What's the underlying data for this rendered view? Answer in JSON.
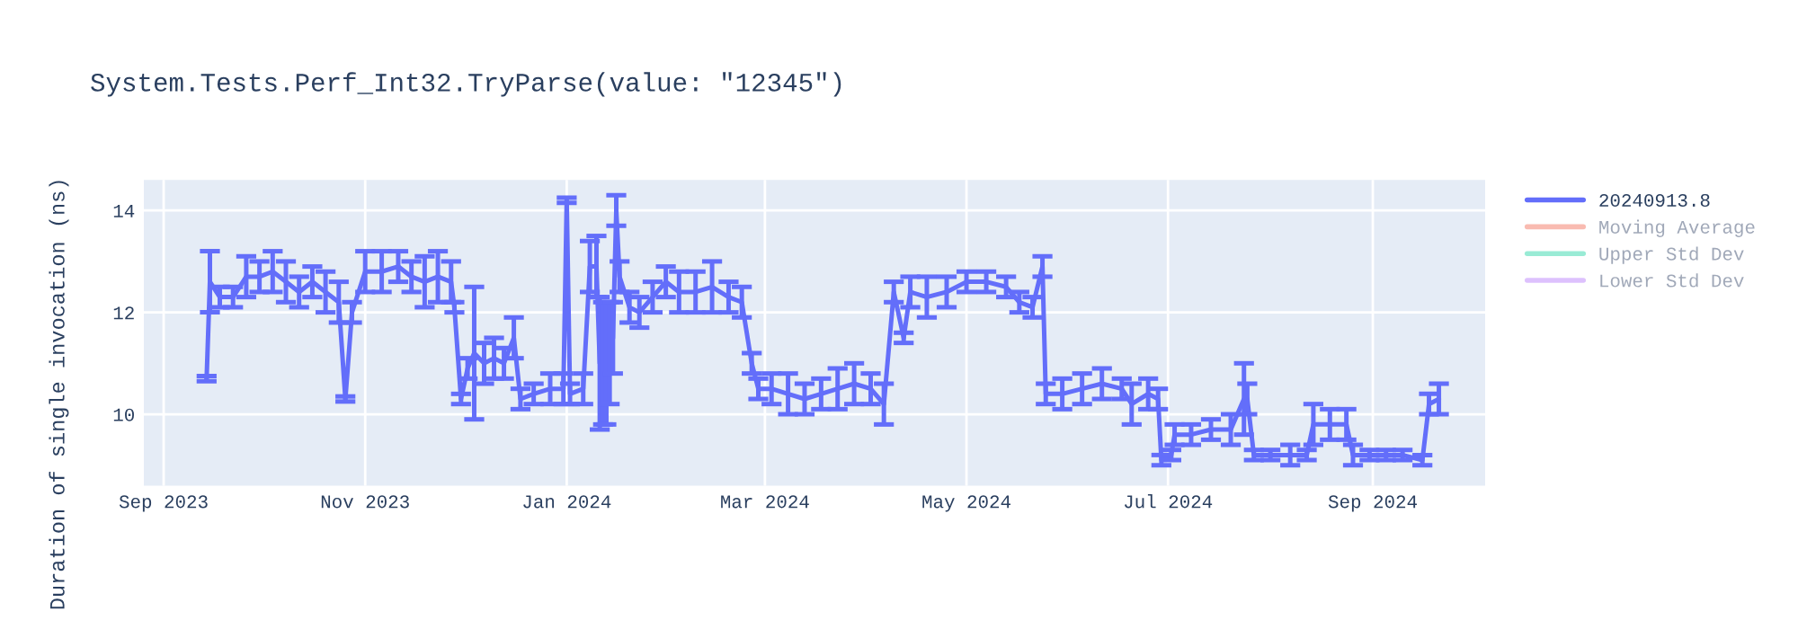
{
  "chart_data": {
    "type": "line",
    "title": "System.Tests.Perf_Int32.TryParse(value: \"12345\")",
    "ylabel": "Duration of single invocation (ns)",
    "xlim": [
      "2023-08-26",
      "2024-10-05"
    ],
    "xticks": [
      {
        "value": "2023-09-01",
        "label": "Sep 2023"
      },
      {
        "value": "2023-11-01",
        "label": "Nov 2023"
      },
      {
        "value": "2024-01-01",
        "label": "Jan 2024"
      },
      {
        "value": "2024-03-01",
        "label": "Mar 2024"
      },
      {
        "value": "2024-05-01",
        "label": "May 2024"
      },
      {
        "value": "2024-07-01",
        "label": "Jul 2024"
      },
      {
        "value": "2024-09-01",
        "label": "Sep 2024"
      }
    ],
    "ylim": [
      8.6,
      14.6
    ],
    "yticks": [
      10,
      12,
      14
    ],
    "grid": true,
    "legend": "top right",
    "marker": "none",
    "line_style": "solid",
    "series": [
      {
        "name": "20240913.8",
        "color": "#636efa",
        "x": [
          "2023-09-14",
          "2023-09-15",
          "2023-09-18",
          "2023-09-22",
          "2023-09-26",
          "2023-09-30",
          "2023-10-04",
          "2023-10-08",
          "2023-10-12",
          "2023-10-16",
          "2023-10-20",
          "2023-10-24",
          "2023-10-26",
          "2023-10-28",
          "2023-11-01",
          "2023-11-06",
          "2023-11-11",
          "2023-11-15",
          "2023-11-19",
          "2023-11-23",
          "2023-11-27",
          "2023-11-28",
          "2023-11-30",
          "2023-12-02",
          "2023-12-04",
          "2023-12-07",
          "2023-12-10",
          "2023-12-13",
          "2023-12-16",
          "2023-12-18",
          "2023-12-22",
          "2023-12-27",
          "2023-12-31",
          "2024-01-01",
          "2024-01-02",
          "2024-01-06",
          "2024-01-08",
          "2024-01-10",
          "2024-01-11",
          "2024-01-12",
          "2024-01-13",
          "2024-01-14",
          "2024-01-15",
          "2024-01-16",
          "2024-01-17",
          "2024-01-20",
          "2024-01-23",
          "2024-01-27",
          "2024-01-31",
          "2024-02-04",
          "2024-02-09",
          "2024-02-14",
          "2024-02-19",
          "2024-02-23",
          "2024-02-26",
          "2024-02-28",
          "2024-03-03",
          "2024-03-08",
          "2024-03-13",
          "2024-03-18",
          "2024-03-23",
          "2024-03-28",
          "2024-04-02",
          "2024-04-06",
          "2024-04-09",
          "2024-04-12",
          "2024-04-14",
          "2024-04-19",
          "2024-04-25",
          "2024-05-01",
          "2024-05-07",
          "2024-05-13",
          "2024-05-17",
          "2024-05-21",
          "2024-05-24",
          "2024-05-25",
          "2024-05-30",
          "2024-06-05",
          "2024-06-11",
          "2024-06-17",
          "2024-06-20",
          "2024-06-25",
          "2024-06-28",
          "2024-06-29",
          "2024-07-02",
          "2024-07-03",
          "2024-07-08",
          "2024-07-14",
          "2024-07-20",
          "2024-07-24",
          "2024-07-25",
          "2024-07-27",
          "2024-08-01",
          "2024-08-07",
          "2024-08-12",
          "2024-08-14",
          "2024-08-19",
          "2024-08-24",
          "2024-08-26",
          "2024-08-31",
          "2024-09-05",
          "2024-09-10",
          "2024-09-16",
          "2024-09-18",
          "2024-09-21"
        ],
        "values": [
          10.7,
          12.6,
          12.3,
          12.3,
          12.7,
          12.7,
          12.8,
          12.6,
          12.4,
          12.6,
          12.4,
          12.2,
          10.3,
          12.0,
          12.8,
          12.8,
          12.9,
          12.7,
          12.6,
          12.7,
          12.6,
          12.1,
          10.3,
          10.9,
          11.2,
          11.0,
          11.1,
          11.0,
          11.5,
          10.3,
          10.4,
          10.5,
          10.5,
          14.2,
          10.4,
          10.5,
          12.9,
          12.9,
          11.0,
          11.0,
          11.0,
          11.2,
          11.5,
          14.0,
          12.7,
          12.1,
          12.0,
          12.3,
          12.6,
          12.4,
          12.4,
          12.5,
          12.3,
          12.2,
          11.0,
          10.5,
          10.5,
          10.4,
          10.3,
          10.4,
          10.5,
          10.6,
          10.5,
          10.2,
          12.4,
          11.5,
          12.4,
          12.3,
          12.4,
          12.6,
          12.6,
          12.5,
          12.2,
          12.1,
          12.9,
          10.4,
          10.4,
          10.5,
          10.6,
          10.5,
          10.2,
          10.4,
          10.3,
          9.1,
          9.2,
          9.6,
          9.6,
          9.7,
          9.7,
          10.3,
          10.3,
          9.2,
          9.2,
          9.2,
          9.2,
          9.8,
          9.8,
          9.8,
          9.2,
          9.2,
          9.2,
          9.2,
          9.1,
          10.2,
          10.3
        ],
        "errors": [
          0.05,
          0.6,
          0.2,
          0.2,
          0.4,
          0.3,
          0.4,
          0.4,
          0.3,
          0.3,
          0.4,
          0.4,
          0.05,
          0.2,
          0.4,
          0.4,
          0.3,
          0.3,
          0.5,
          0.5,
          0.4,
          0.1,
          0.1,
          0.2,
          1.3,
          0.4,
          0.4,
          0.3,
          0.4,
          0.2,
          0.2,
          0.3,
          0.3,
          0.05,
          0.2,
          0.3,
          0.5,
          0.6,
          1.3,
          1.2,
          1.2,
          1.0,
          0.7,
          0.3,
          0.3,
          0.3,
          0.3,
          0.3,
          0.3,
          0.4,
          0.4,
          0.5,
          0.3,
          0.3,
          0.2,
          0.2,
          0.3,
          0.4,
          0.3,
          0.3,
          0.4,
          0.4,
          0.3,
          0.4,
          0.2,
          0.1,
          0.3,
          0.4,
          0.3,
          0.2,
          0.2,
          0.2,
          0.2,
          0.2,
          0.2,
          0.2,
          0.3,
          0.3,
          0.3,
          0.2,
          0.4,
          0.3,
          0.2,
          0.1,
          0.1,
          0.2,
          0.2,
          0.2,
          0.3,
          0.7,
          0.3,
          0.1,
          0.1,
          0.2,
          0.1,
          0.4,
          0.3,
          0.3,
          0.2,
          0.1,
          0.1,
          0.1,
          0.1,
          0.2,
          0.3
        ]
      },
      {
        "name": "Moving Average",
        "color": "#ef553b"
      },
      {
        "name": "Upper Std Dev",
        "color": "#00cc96"
      },
      {
        "name": "Lower Std Dev",
        "color": "#ab63fa"
      }
    ]
  }
}
